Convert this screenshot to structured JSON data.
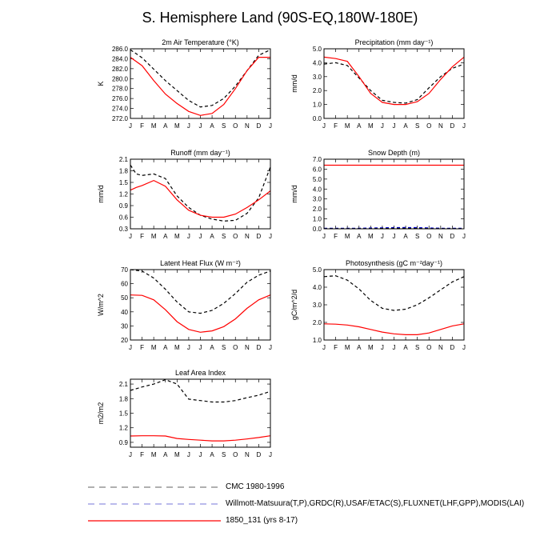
{
  "title": "S. Hemisphere Land (90S-EQ,180W-180E)",
  "months": [
    "J",
    "F",
    "M",
    "A",
    "M",
    "J",
    "J",
    "A",
    "S",
    "O",
    "N",
    "D",
    "J"
  ],
  "colors": {
    "cmc": "#000000",
    "obs": "#0000cc",
    "model": "#ff0000"
  },
  "legend": [
    {
      "key": "cmc",
      "label": "CMC 1980-1996",
      "color": "#808080",
      "dash": "8,6"
    },
    {
      "key": "obs",
      "label": "Willmott-Matsuura(T,P),GRDC(R),USAF/ETAC(S),FLUXNET(LHF,GPP),MODIS(LAI)",
      "color": "#9090e0",
      "dash": "8,6"
    },
    {
      "key": "model",
      "label": "1850_131 (yrs 8-17)",
      "color": "#ff0000",
      "dash": ""
    }
  ],
  "chart_data": [
    {
      "type": "line",
      "title": "2m Air Temperature (°K)",
      "ylabel": "K",
      "ylim": [
        272.0,
        286.0
      ],
      "yticks": [
        "272.0",
        "274.0",
        "276.0",
        "278.0",
        "280.0",
        "282.0",
        "284.0",
        "286.0"
      ],
      "x": [
        1,
        2,
        3,
        4,
        5,
        6,
        7,
        8,
        9,
        10,
        11,
        12,
        13
      ],
      "series": [
        {
          "name": "cmc",
          "style": "dash",
          "values": [
            285.8,
            284.2,
            281.9,
            279.6,
            277.6,
            275.6,
            274.3,
            274.6,
            276.0,
            278.5,
            281.6,
            284.7,
            285.8
          ]
        },
        {
          "name": "model",
          "style": "solid",
          "values": [
            284.3,
            282.6,
            279.6,
            276.9,
            275.0,
            273.4,
            272.6,
            273.0,
            274.8,
            278.0,
            281.6,
            284.3,
            284.3
          ]
        }
      ]
    },
    {
      "type": "line",
      "title": "Precipitation (mm day⁻¹)",
      "ylabel": "mm/d",
      "ylim": [
        0.0,
        5.0
      ],
      "yticks": [
        "0.0",
        "1.0",
        "2.0",
        "3.0",
        "4.0",
        "5.0"
      ],
      "x": [
        1,
        2,
        3,
        4,
        5,
        6,
        7,
        8,
        9,
        10,
        11,
        12,
        13
      ],
      "series": [
        {
          "name": "cmc",
          "style": "dash",
          "values": [
            3.9,
            4.0,
            3.8,
            2.9,
            2.0,
            1.3,
            1.15,
            1.1,
            1.35,
            2.2,
            3.0,
            3.6,
            3.9
          ]
        },
        {
          "name": "model",
          "style": "solid",
          "values": [
            4.4,
            4.3,
            4.1,
            3.0,
            1.8,
            1.15,
            1.0,
            1.0,
            1.2,
            1.8,
            2.8,
            3.7,
            4.4
          ]
        }
      ]
    },
    {
      "type": "line",
      "title": "Runoff (mm day⁻¹)",
      "ylabel": "mm/d",
      "ylim": [
        0.3,
        2.1
      ],
      "yticks": [
        "0.3",
        "0.6",
        "0.9",
        "1.2",
        "1.5",
        "1.8",
        "2.1"
      ],
      "x": [
        1,
        1.5,
        2,
        3,
        4,
        5,
        6,
        7,
        8,
        9,
        10,
        11,
        12,
        13
      ],
      "series": [
        {
          "name": "cmc",
          "style": "dash",
          "values": [
            1.95,
            1.72,
            1.68,
            1.72,
            1.6,
            1.15,
            0.85,
            0.65,
            0.55,
            0.5,
            0.52,
            0.7,
            1.1,
            1.9
          ]
        },
        {
          "name": "model",
          "style": "solid",
          "values": [
            1.3,
            1.37,
            1.42,
            1.55,
            1.4,
            1.05,
            0.78,
            0.65,
            0.6,
            0.6,
            0.68,
            0.85,
            1.05,
            1.28
          ]
        }
      ]
    },
    {
      "type": "line",
      "title": "Snow Depth (m)",
      "ylabel": "mm/d",
      "ylim": [
        0.0,
        7.0
      ],
      "yticks": [
        "0.0",
        "1.0",
        "2.0",
        "3.0",
        "4.0",
        "5.0",
        "6.0",
        "7.0"
      ],
      "x": [
        1,
        2,
        3,
        4,
        5,
        6,
        7,
        8,
        9,
        10,
        11,
        12,
        13
      ],
      "series": [
        {
          "name": "obs",
          "style": "dash",
          "values": [
            0.05,
            0.05,
            0.05,
            0.06,
            0.08,
            0.1,
            0.12,
            0.13,
            0.12,
            0.09,
            0.06,
            0.05,
            0.05
          ]
        },
        {
          "name": "cmc",
          "style": "dash",
          "values": [
            0.01,
            0.01,
            0.01,
            0.01,
            0.02,
            0.03,
            0.04,
            0.04,
            0.03,
            0.02,
            0.01,
            0.01,
            0.01
          ]
        },
        {
          "name": "model",
          "style": "solid",
          "values": [
            6.4,
            6.4,
            6.4,
            6.4,
            6.4,
            6.4,
            6.4,
            6.4,
            6.4,
            6.4,
            6.4,
            6.4,
            6.4
          ]
        }
      ]
    },
    {
      "type": "line",
      "title": "Latent Heat Flux (W m⁻²)",
      "ylabel": "W/m^2",
      "ylim": [
        20,
        70
      ],
      "yticks": [
        "20",
        "30",
        "40",
        "50",
        "60",
        "70"
      ],
      "x": [
        1,
        2,
        3,
        4,
        5,
        6,
        7,
        8,
        9,
        10,
        11,
        12,
        13
      ],
      "series": [
        {
          "name": "cmc",
          "style": "dash",
          "values": [
            70,
            69,
            64,
            56,
            47,
            40,
            39,
            41,
            46,
            53,
            61,
            66,
            69
          ]
        },
        {
          "name": "model",
          "style": "solid",
          "values": [
            52,
            51.7,
            48.5,
            41.5,
            33,
            27.5,
            25.5,
            26.5,
            29.5,
            35,
            42.5,
            48.5,
            52
          ]
        }
      ]
    },
    {
      "type": "line",
      "title": "Photosynthesis (gC m⁻²day⁻¹)",
      "ylabel": "gC/m^2/d",
      "ylim": [
        1.0,
        5.0
      ],
      "yticks": [
        "1.0",
        "2.0",
        "3.0",
        "4.0",
        "5.0"
      ],
      "x": [
        1,
        2,
        3,
        4,
        5,
        6,
        7,
        8,
        9,
        10,
        11,
        12,
        13
      ],
      "series": [
        {
          "name": "cmc",
          "style": "dash",
          "values": [
            4.6,
            4.65,
            4.4,
            3.9,
            3.25,
            2.8,
            2.68,
            2.75,
            3.0,
            3.4,
            3.85,
            4.3,
            4.6
          ]
        },
        {
          "name": "model",
          "style": "solid",
          "values": [
            1.92,
            1.9,
            1.85,
            1.75,
            1.6,
            1.45,
            1.35,
            1.3,
            1.3,
            1.4,
            1.6,
            1.8,
            1.92
          ]
        }
      ]
    },
    {
      "type": "line",
      "title": "Leaf Area Index",
      "ylabel": "m2/m2",
      "ylim": [
        0.8,
        2.2
      ],
      "yticks": [
        "0.9",
        "1.2",
        "1.5",
        "1.8",
        "2.1"
      ],
      "x": [
        1,
        2,
        3,
        4,
        5,
        6,
        7,
        8,
        9,
        10,
        11,
        12,
        13
      ],
      "series": [
        {
          "name": "cmc",
          "style": "dash",
          "values": [
            1.97,
            2.04,
            2.1,
            2.19,
            2.1,
            1.79,
            1.76,
            1.73,
            1.73,
            1.76,
            1.82,
            1.87,
            1.95
          ]
        },
        {
          "name": "model",
          "style": "solid",
          "values": [
            1.03,
            1.035,
            1.035,
            1.03,
            0.98,
            0.96,
            0.945,
            0.93,
            0.93,
            0.945,
            0.97,
            1.0,
            1.035
          ]
        }
      ]
    }
  ]
}
